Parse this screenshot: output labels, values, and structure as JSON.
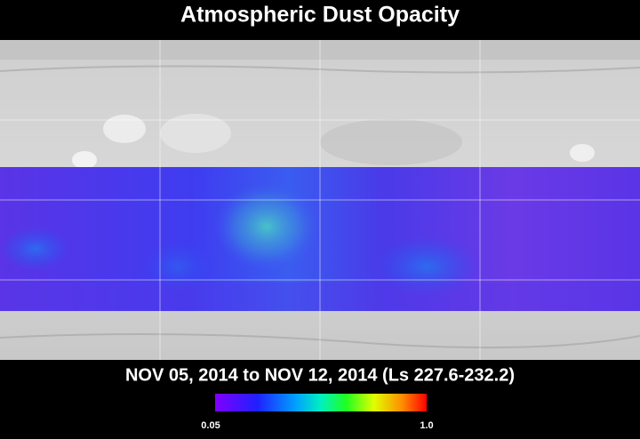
{
  "title": "Atmospheric Dust Opacity",
  "date_range": "NOV 05, 2014 to NOV 12, 2014 (Ls 227.6-232.2)",
  "colorbar": {
    "min_label": "0.05",
    "max_label": "1.0"
  }
}
